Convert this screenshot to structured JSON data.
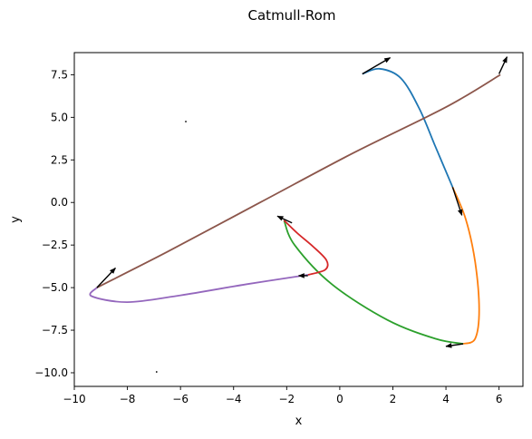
{
  "chart_data": {
    "type": "line",
    "title": "Catmull-Rom",
    "xlabel": "x",
    "ylabel": "y",
    "xlim": [
      -10,
      6.9
    ],
    "ylim": [
      -10.8,
      8.8
    ],
    "xticks": [
      -10,
      -8,
      -6,
      -4,
      -2,
      0,
      2,
      4,
      6
    ],
    "xtick_labels": [
      "−10",
      "−8",
      "−6",
      "−4",
      "−2",
      "0",
      "2",
      "4",
      "6"
    ],
    "yticks": [
      -10.0,
      -7.5,
      -5.0,
      -2.5,
      0.0,
      2.5,
      5.0,
      7.5
    ],
    "ytick_labels": [
      "−10.0",
      "−7.5",
      "−5.0",
      "−2.5",
      "0.0",
      "2.5",
      "5.0",
      "7.5"
    ],
    "grid": false,
    "series": [
      {
        "color": "#1f77b4",
        "points": [
          [
            0.85,
            7.55
          ],
          [
            1.5,
            7.85
          ],
          [
            2.3,
            7.3
          ],
          [
            3.0,
            5.5
          ],
          [
            3.6,
            3.3
          ],
          [
            4.25,
            0.9
          ]
        ]
      },
      {
        "color": "#ff7f0e",
        "points": [
          [
            4.25,
            0.9
          ],
          [
            4.75,
            -1.0
          ],
          [
            5.1,
            -3.5
          ],
          [
            5.25,
            -6.3
          ],
          [
            5.1,
            -8.0
          ],
          [
            4.65,
            -8.3
          ]
        ]
      },
      {
        "color": "#2ca02c",
        "points": [
          [
            4.65,
            -8.3
          ],
          [
            3.6,
            -8.0
          ],
          [
            1.8,
            -6.9
          ],
          [
            -0.3,
            -4.8
          ],
          [
            -1.7,
            -2.5
          ],
          [
            -2.1,
            -1.05
          ]
        ]
      },
      {
        "color": "#d62728",
        "points": [
          [
            -2.1,
            -1.05
          ],
          [
            -1.6,
            -1.8
          ],
          [
            -1.0,
            -2.6
          ],
          [
            -0.5,
            -3.4
          ],
          [
            -0.55,
            -3.95
          ],
          [
            -1.2,
            -4.25
          ]
        ]
      },
      {
        "color": "#9467bd",
        "points": [
          [
            -1.2,
            -4.25
          ],
          [
            -3.5,
            -4.8
          ],
          [
            -6.0,
            -5.45
          ],
          [
            -8.0,
            -5.85
          ],
          [
            -9.35,
            -5.5
          ],
          [
            -9.15,
            -5.0
          ]
        ]
      },
      {
        "color": "#8c564b",
        "points": [
          [
            -9.15,
            -5.0
          ],
          [
            -6.5,
            -2.9
          ],
          [
            -3.0,
            0.0
          ],
          [
            0.5,
            2.9
          ],
          [
            4.0,
            5.6
          ],
          [
            6.05,
            7.5
          ]
        ]
      }
    ],
    "arrows": [
      {
        "x": 0.85,
        "y": 7.55,
        "dx": 1.05,
        "dy": 0.95
      },
      {
        "x": 6.0,
        "y": 7.55,
        "dx": 0.3,
        "dy": 1.0
      },
      {
        "x": 4.25,
        "y": 0.9,
        "dx": 0.35,
        "dy": -1.65
      },
      {
        "x": 4.65,
        "y": -8.3,
        "dx": -0.65,
        "dy": -0.15
      },
      {
        "x": -1.8,
        "y": -1.2,
        "dx": -0.55,
        "dy": 0.4
      },
      {
        "x": -1.2,
        "y": -4.3,
        "dx": -0.35,
        "dy": 0.0
      },
      {
        "x": -9.15,
        "y": -5.0,
        "dx": 0.7,
        "dy": 1.15
      }
    ],
    "stray_points": [
      {
        "x": -5.8,
        "y": 4.75
      },
      {
        "x": -6.9,
        "y": -9.95
      }
    ]
  }
}
